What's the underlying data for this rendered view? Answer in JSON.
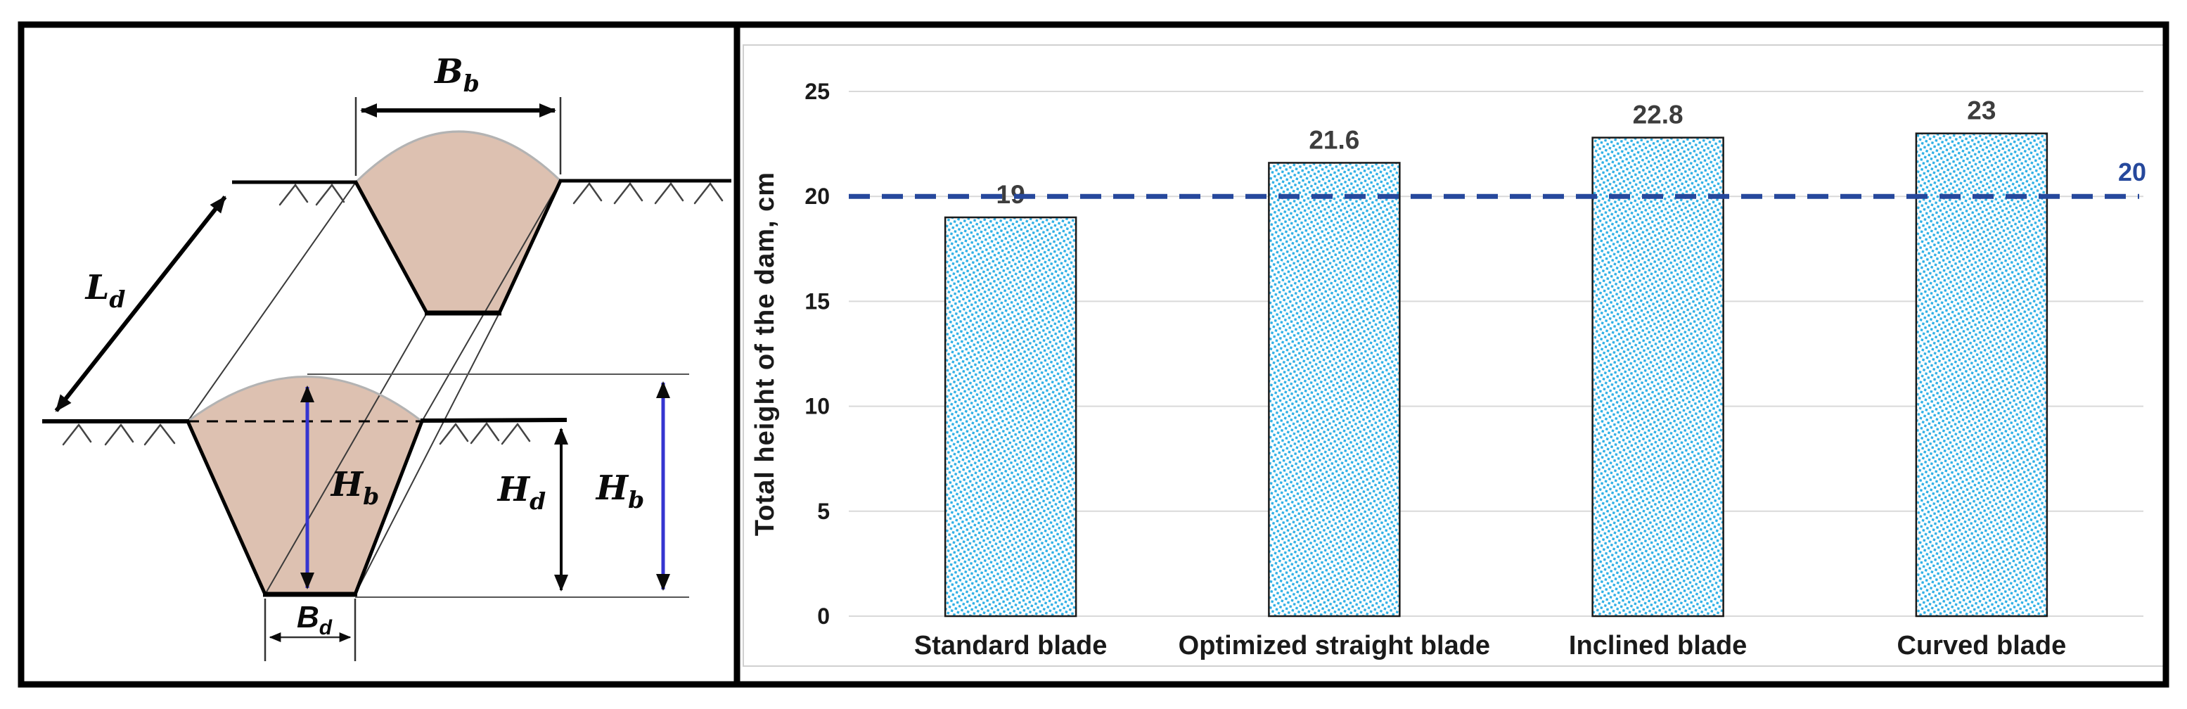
{
  "figure": {
    "description_left": "dam-cross-section-schematic",
    "description_right": "bar-chart-total-dam-height"
  },
  "diagram": {
    "labels": {
      "top_width": {
        "base": "B",
        "sub": "b"
      },
      "length": {
        "base": "L",
        "sub": "d"
      },
      "body_height_front": {
        "base": "H",
        "sub": "b"
      },
      "dam_height": {
        "base": "H",
        "sub": "d"
      },
      "body_height_right": {
        "base": "H",
        "sub": "b"
      },
      "bottom_width": {
        "base": "B",
        "sub": "d"
      }
    },
    "colors": {
      "soil_fill": "#ddc1b1",
      "dimension_blue": "#3535d0",
      "arc_gray": "#b3b3b3"
    }
  },
  "chart_data": {
    "type": "bar",
    "title": "",
    "categories": [
      "Standard blade",
      "Optimized straight blade",
      "Inclined blade",
      "Curved blade"
    ],
    "values": [
      19,
      21.6,
      22.8,
      23
    ],
    "value_labels": [
      "19",
      "21.6",
      "22.8",
      "23"
    ],
    "xlabel": "",
    "ylabel": "Total height of the dam, cm",
    "yticks": [
      0,
      5,
      10,
      15,
      20,
      25
    ],
    "ylim": [
      0,
      25
    ],
    "grid": "horizontal",
    "legend": "none",
    "bar_dot_color": "#2fb0e5",
    "bar_outline_color": "#1a1a1a",
    "grid_color": "#d9d9d9",
    "ref_line": {
      "value": 20,
      "label": "20",
      "color": "#26489c",
      "style": "dashed"
    }
  }
}
